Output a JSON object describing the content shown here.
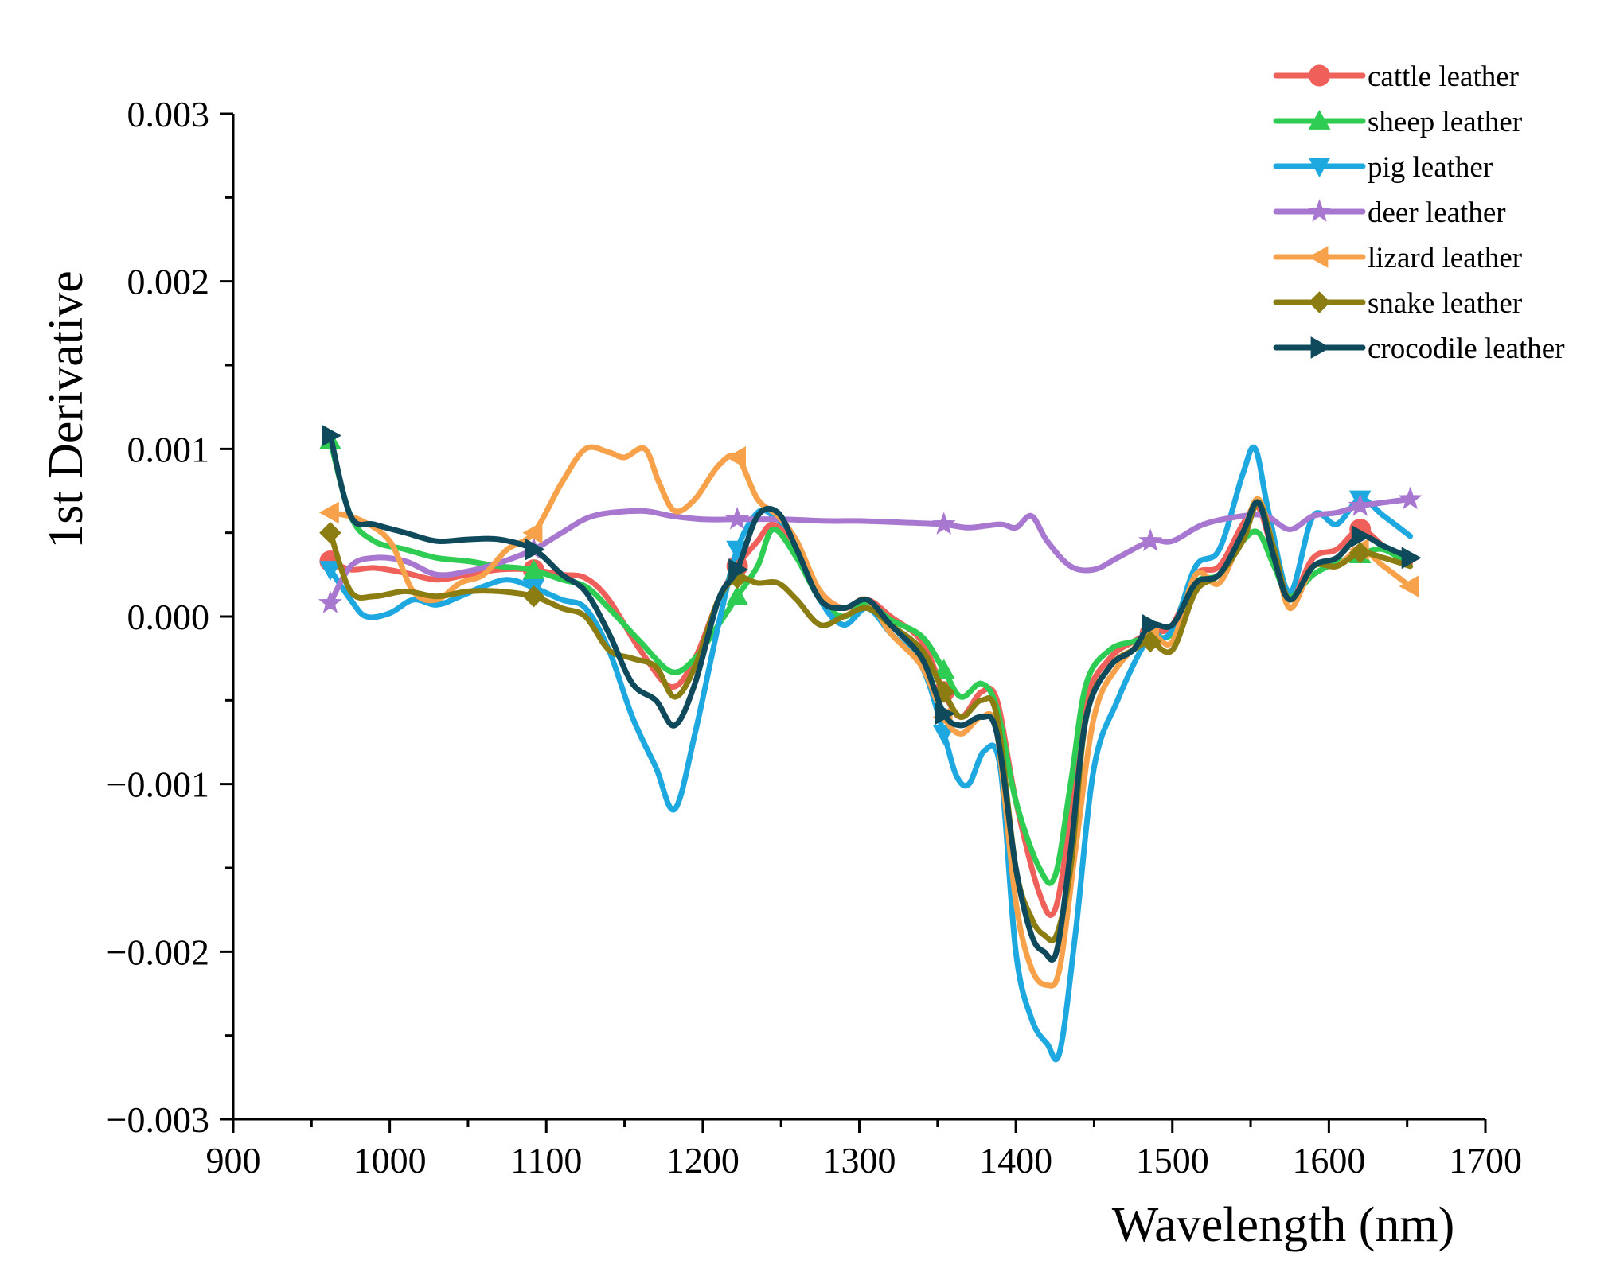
{
  "chart_data": {
    "type": "line",
    "title": "",
    "xlabel": "Wavelength (nm)",
    "ylabel": "1st Derivative",
    "xlim": [
      900,
      1700
    ],
    "ylim": [
      -0.003,
      0.003
    ],
    "xticks": [
      900,
      1000,
      1100,
      1200,
      1300,
      1400,
      1500,
      1600,
      1700
    ],
    "xtick_labels": [
      "900",
      "1000",
      "1100",
      "1200",
      "1300",
      "1400",
      "1500",
      "1600",
      "1700"
    ],
    "yticks": [
      -0.003,
      -0.002,
      -0.001,
      0.0,
      0.001,
      0.002,
      0.003
    ],
    "ytick_labels": [
      "−0.003",
      "−0.002",
      "−0.001",
      "0.000",
      "0.001",
      "0.002",
      "0.003"
    ],
    "grid": false,
    "legend_position": "top-right",
    "series": [
      {
        "name": "cattle leather",
        "color": "#f0605a",
        "marker": "circle",
        "marker_x": [
          962,
          1092,
          1222,
          1354,
          1486,
          1620
        ],
        "x": [
          962,
          975,
          990,
          1010,
          1030,
          1050,
          1070,
          1090,
          1110,
          1125,
          1140,
          1160,
          1180,
          1195,
          1210,
          1222,
          1235,
          1245,
          1260,
          1275,
          1290,
          1305,
          1320,
          1340,
          1354,
          1365,
          1378,
          1388,
          1400,
          1415,
          1425,
          1435,
          1445,
          1460,
          1475,
          1486,
          1500,
          1515,
          1530,
          1545,
          1555,
          1565,
          1575,
          1590,
          1605,
          1620,
          1635,
          1652
        ],
        "y": [
          0.00033,
          0.00028,
          0.00029,
          0.00026,
          0.00022,
          0.00025,
          0.00028,
          0.00028,
          0.00025,
          0.00023,
          0.0001,
          -0.0002,
          -0.00042,
          -0.00025,
          0.0001,
          0.0003,
          0.00045,
          0.00055,
          0.00042,
          0.00015,
          5e-05,
          0.0001,
          0.0,
          -0.00015,
          -0.00045,
          -0.0006,
          -0.00045,
          -0.0005,
          -0.0011,
          -0.00165,
          -0.00175,
          -0.0012,
          -0.0005,
          -0.00025,
          -0.00015,
          -0.0001,
          -5e-05,
          0.00025,
          0.0003,
          0.00055,
          0.00065,
          0.00035,
          0.0001,
          0.00035,
          0.0004,
          0.00052,
          0.00042,
          0.00032
        ]
      },
      {
        "name": "sheep leather",
        "color": "#2ecc52",
        "marker": "triangle-up",
        "marker_x": [
          962,
          1092,
          1222,
          1354,
          1486,
          1620
        ],
        "x": [
          962,
          975,
          990,
          1010,
          1030,
          1050,
          1070,
          1090,
          1110,
          1125,
          1140,
          1160,
          1180,
          1195,
          1210,
          1222,
          1235,
          1245,
          1260,
          1275,
          1290,
          1305,
          1320,
          1340,
          1354,
          1365,
          1378,
          1388,
          1400,
          1415,
          1425,
          1435,
          1445,
          1460,
          1475,
          1486,
          1500,
          1515,
          1530,
          1545,
          1555,
          1565,
          1575,
          1590,
          1605,
          1620,
          1635,
          1652
        ],
        "y": [
          0.00105,
          0.0006,
          0.00045,
          0.0004,
          0.00035,
          0.00033,
          0.0003,
          0.00028,
          0.00022,
          0.00018,
          5e-05,
          -0.00015,
          -0.00033,
          -0.00025,
          -5e-05,
          0.00012,
          0.0003,
          0.00052,
          0.00035,
          0.0001,
          0.0,
          8e-05,
          -2e-05,
          -0.00012,
          -0.00032,
          -0.00048,
          -0.0004,
          -0.00055,
          -0.0011,
          -0.0015,
          -0.00155,
          -0.001,
          -0.0004,
          -0.0002,
          -0.00015,
          -0.00012,
          -0.0001,
          0.0002,
          0.00025,
          0.00045,
          0.0005,
          0.0003,
          0.00012,
          0.00025,
          0.00032,
          0.00037,
          0.0004,
          0.0003
        ]
      },
      {
        "name": "pig leather",
        "color": "#1ea8e0",
        "marker": "triangle-down",
        "marker_x": [
          962,
          1092,
          1222,
          1354,
          1486,
          1620
        ],
        "x": [
          962,
          975,
          985,
          1000,
          1015,
          1030,
          1045,
          1060,
          1075,
          1090,
          1110,
          1125,
          1140,
          1155,
          1170,
          1182,
          1195,
          1210,
          1222,
          1235,
          1245,
          1260,
          1275,
          1290,
          1305,
          1320,
          1340,
          1354,
          1362,
          1370,
          1380,
          1390,
          1400,
          1410,
          1420,
          1428,
          1438,
          1450,
          1465,
          1480,
          1486,
          1500,
          1515,
          1530,
          1545,
          1553,
          1562,
          1575,
          1590,
          1605,
          1620,
          1635,
          1652
        ],
        "y": [
          0.00028,
          0.0001,
          0.0,
          2e-05,
          0.0001,
          7e-05,
          0.00012,
          0.00018,
          0.00022,
          0.00018,
          0.0001,
          5e-05,
          -0.0002,
          -0.0006,
          -0.0009,
          -0.00115,
          -0.0007,
          -5e-05,
          0.0004,
          0.00062,
          0.0006,
          0.00045,
          0.0001,
          -5e-05,
          5e-05,
          -0.0001,
          -0.0003,
          -0.0007,
          -0.00095,
          -0.001,
          -0.0008,
          -0.0009,
          -0.002,
          -0.0024,
          -0.00255,
          -0.0026,
          -0.0019,
          -0.0009,
          -0.0005,
          -0.0002,
          -0.00015,
          -8e-05,
          0.0003,
          0.0004,
          0.00085,
          0.001,
          0.0006,
          0.00015,
          0.0006,
          0.00055,
          0.0007,
          0.0006,
          0.00048
        ]
      },
      {
        "name": "deer leather",
        "color": "#a878d0",
        "marker": "star",
        "marker_x": [
          962,
          1092,
          1222,
          1354,
          1486,
          1620,
          1652
        ],
        "x": [
          962,
          975,
          990,
          1010,
          1030,
          1050,
          1070,
          1092,
          1110,
          1130,
          1160,
          1180,
          1200,
          1222,
          1250,
          1280,
          1300,
          1330,
          1354,
          1370,
          1390,
          1400,
          1410,
          1420,
          1435,
          1450,
          1465,
          1486,
          1500,
          1520,
          1545,
          1560,
          1575,
          1590,
          1605,
          1620,
          1635,
          1652
        ],
        "y": [
          8e-05,
          0.0003,
          0.00035,
          0.00033,
          0.00025,
          0.00027,
          0.00032,
          0.0004,
          0.0005,
          0.0006,
          0.00063,
          0.0006,
          0.00058,
          0.00058,
          0.00058,
          0.00057,
          0.00057,
          0.00056,
          0.00055,
          0.00053,
          0.00055,
          0.00053,
          0.0006,
          0.00045,
          0.0003,
          0.00028,
          0.00035,
          0.00045,
          0.00045,
          0.00055,
          0.0006,
          0.0006,
          0.00052,
          0.0006,
          0.00062,
          0.00066,
          0.00068,
          0.0007
        ]
      },
      {
        "name": "lizard leather",
        "color": "#f7a24a",
        "marker": "triangle-left",
        "marker_x": [
          962,
          1092,
          1222,
          1354,
          1486,
          1620,
          1652
        ],
        "x": [
          962,
          980,
          1000,
          1015,
          1030,
          1045,
          1060,
          1075,
          1092,
          1110,
          1125,
          1140,
          1150,
          1163,
          1172,
          1182,
          1195,
          1210,
          1222,
          1235,
          1248,
          1260,
          1275,
          1290,
          1305,
          1320,
          1340,
          1354,
          1365,
          1378,
          1388,
          1400,
          1410,
          1420,
          1428,
          1438,
          1450,
          1465,
          1486,
          1500,
          1515,
          1530,
          1545,
          1555,
          1565,
          1575,
          1590,
          1605,
          1620,
          1635,
          1652
        ],
        "y": [
          0.00062,
          0.00058,
          0.00045,
          0.00015,
          0.0001,
          0.0002,
          0.00025,
          0.0004,
          0.0005,
          0.0008,
          0.001,
          0.00098,
          0.00095,
          0.001,
          0.0008,
          0.00063,
          0.0007,
          0.0009,
          0.00095,
          0.0007,
          0.0006,
          0.00045,
          0.00015,
          5e-05,
          0.0001,
          -0.0001,
          -0.0003,
          -0.0006,
          -0.0007,
          -0.0006,
          -0.0007,
          -0.0017,
          -0.0021,
          -0.0022,
          -0.0021,
          -0.0014,
          -0.0006,
          -0.0003,
          -0.00012,
          -0.00015,
          0.00025,
          0.0002,
          0.0005,
          0.0007,
          0.0004,
          5e-05,
          0.0003,
          0.0003,
          0.0004,
          0.0003,
          0.00018
        ]
      },
      {
        "name": "snake leather",
        "color": "#8b7d12",
        "marker": "diamond",
        "marker_x": [
          962,
          1092,
          1222,
          1354,
          1486,
          1620
        ],
        "x": [
          962,
          975,
          990,
          1010,
          1030,
          1050,
          1070,
          1092,
          1110,
          1125,
          1140,
          1155,
          1170,
          1182,
          1195,
          1210,
          1222,
          1235,
          1248,
          1260,
          1275,
          1290,
          1305,
          1320,
          1340,
          1354,
          1365,
          1378,
          1388,
          1400,
          1410,
          1418,
          1426,
          1435,
          1445,
          1460,
          1475,
          1486,
          1500,
          1515,
          1530,
          1545,
          1555,
          1565,
          1575,
          1590,
          1605,
          1620,
          1635,
          1652
        ],
        "y": [
          0.0005,
          0.00015,
          0.00012,
          0.00015,
          0.00012,
          0.00015,
          0.00015,
          0.00012,
          5e-05,
          0.0,
          -0.0002,
          -0.00025,
          -0.0003,
          -0.00048,
          -0.0003,
          0.0001,
          0.00023,
          0.0002,
          0.0002,
          0.0001,
          -5e-05,
          0.0,
          5e-05,
          -5e-05,
          -0.0002,
          -0.00045,
          -0.0006,
          -0.0005,
          -0.0006,
          -0.0015,
          -0.0018,
          -0.0019,
          -0.0019,
          -0.0015,
          -0.0006,
          -0.0003,
          -0.0002,
          -0.00015,
          -0.0002,
          0.00015,
          0.00025,
          0.00045,
          0.00068,
          0.0004,
          0.0001,
          0.0003,
          0.0003,
          0.00038,
          0.00035,
          0.0003
        ]
      },
      {
        "name": "crocodile leather",
        "color": "#0e4a5c",
        "marker": "triangle-right",
        "marker_x": [
          962,
          1092,
          1222,
          1354,
          1486,
          1620,
          1652
        ],
        "x": [
          962,
          975,
          990,
          1010,
          1030,
          1050,
          1070,
          1092,
          1110,
          1125,
          1140,
          1155,
          1170,
          1182,
          1195,
          1210,
          1222,
          1235,
          1248,
          1260,
          1275,
          1290,
          1305,
          1320,
          1340,
          1354,
          1365,
          1378,
          1388,
          1400,
          1410,
          1418,
          1426,
          1435,
          1445,
          1460,
          1475,
          1486,
          1500,
          1515,
          1530,
          1545,
          1555,
          1565,
          1575,
          1590,
          1605,
          1620,
          1635,
          1652
        ],
        "y": [
          0.00108,
          0.0006,
          0.00055,
          0.0005,
          0.00045,
          0.00046,
          0.00046,
          0.0004,
          0.00025,
          0.00015,
          -0.0001,
          -0.0004,
          -0.0005,
          -0.00065,
          -0.0004,
          0.0001,
          0.00028,
          0.0006,
          0.00062,
          0.0004,
          0.0001,
          5e-05,
          0.0001,
          -5e-05,
          -0.00025,
          -0.00058,
          -0.00065,
          -0.0006,
          -0.0007,
          -0.0015,
          -0.0019,
          -0.002,
          -0.002,
          -0.0014,
          -0.0006,
          -0.0003,
          -0.0002,
          -5e-05,
          -5e-05,
          0.0002,
          0.00025,
          0.0005,
          0.00068,
          0.00035,
          0.0001,
          0.0003,
          0.00035,
          0.00048,
          0.00042,
          0.00035
        ]
      }
    ]
  }
}
